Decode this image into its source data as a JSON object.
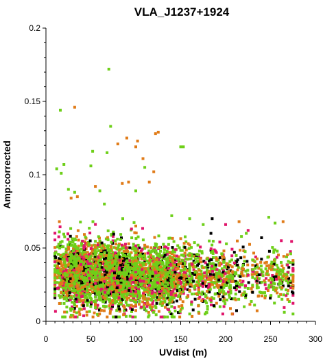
{
  "chart_data": {
    "type": "scatter",
    "title": "VLA_J1237+1924",
    "xlabel": "UVdist (m)",
    "ylabel": "Amp:corrected",
    "xlim": [
      0,
      300
    ],
    "ylim": [
      0,
      0.2
    ],
    "x_ticks": [
      0,
      50,
      100,
      150,
      200,
      250,
      300
    ],
    "x_tick_labels": [
      "0",
      "50",
      "100",
      "150",
      "200",
      "250",
      "300"
    ],
    "y_ticks": [
      0,
      0.05,
      0.1,
      0.15,
      0.2
    ],
    "y_tick_labels": [
      "0",
      "0.05",
      "0.1",
      "0.15",
      "0.2"
    ],
    "grid": false,
    "legend": "none",
    "series_colors": [
      "#000000",
      "#e0156b",
      "#e07b18",
      "#6ecf19"
    ],
    "outliers": [
      {
        "x": 70,
        "y": 0.172,
        "color": "#6ecf19"
      },
      {
        "x": 16,
        "y": 0.144,
        "color": "#6ecf19"
      },
      {
        "x": 32,
        "y": 0.146,
        "color": "#e07b18"
      },
      {
        "x": 72,
        "y": 0.133,
        "color": "#6ecf19"
      },
      {
        "x": 122,
        "y": 0.128,
        "color": "#e07b18"
      },
      {
        "x": 125,
        "y": 0.129,
        "color": "#e07b18"
      },
      {
        "x": 90,
        "y": 0.125,
        "color": "#e07b18"
      },
      {
        "x": 102,
        "y": 0.123,
        "color": "#e07b18"
      },
      {
        "x": 80,
        "y": 0.121,
        "color": "#e07b18"
      },
      {
        "x": 150,
        "y": 0.119,
        "color": "#6ecf19"
      },
      {
        "x": 153,
        "y": 0.119,
        "color": "#6ecf19"
      },
      {
        "x": 52,
        "y": 0.116,
        "color": "#6ecf19"
      },
      {
        "x": 68,
        "y": 0.115,
        "color": "#6ecf19"
      },
      {
        "x": 100,
        "y": 0.119,
        "color": "#e07b18"
      },
      {
        "x": 108,
        "y": 0.111,
        "color": "#e07b18"
      },
      {
        "x": 110,
        "y": 0.105,
        "color": "#6ecf19"
      },
      {
        "x": 12,
        "y": 0.104,
        "color": "#6ecf19"
      },
      {
        "x": 20,
        "y": 0.107,
        "color": "#6ecf19"
      },
      {
        "x": 17,
        "y": 0.101,
        "color": "#6ecf19"
      },
      {
        "x": 50,
        "y": 0.106,
        "color": "#6ecf19"
      },
      {
        "x": 120,
        "y": 0.102,
        "color": "#e07b18"
      },
      {
        "x": 115,
        "y": 0.095,
        "color": "#e07b18"
      },
      {
        "x": 55,
        "y": 0.092,
        "color": "#e07b18"
      },
      {
        "x": 85,
        "y": 0.094,
        "color": "#e07b18"
      },
      {
        "x": 92,
        "y": 0.095,
        "color": "#e07b18"
      },
      {
        "x": 25,
        "y": 0.09,
        "color": "#6ecf19"
      },
      {
        "x": 32,
        "y": 0.088,
        "color": "#6ecf19"
      },
      {
        "x": 60,
        "y": 0.089,
        "color": "#6ecf19"
      },
      {
        "x": 35,
        "y": 0.085,
        "color": "#e07b18"
      },
      {
        "x": 100,
        "y": 0.089,
        "color": "#6ecf19"
      },
      {
        "x": 28,
        "y": 0.084,
        "color": "#e07b18"
      },
      {
        "x": 65,
        "y": 0.08,
        "color": "#6ecf19"
      },
      {
        "x": 140,
        "y": 0.072,
        "color": "#6ecf19"
      },
      {
        "x": 160,
        "y": 0.07,
        "color": "#6ecf19"
      },
      {
        "x": 175,
        "y": 0.066,
        "color": "#6ecf19"
      },
      {
        "x": 215,
        "y": 0.068,
        "color": "#e07b18"
      },
      {
        "x": 200,
        "y": 0.066,
        "color": "#e0156b"
      },
      {
        "x": 248,
        "y": 0.071,
        "color": "#6ecf19"
      },
      {
        "x": 255,
        "y": 0.067,
        "color": "#6ecf19"
      },
      {
        "x": 264,
        "y": 0.068,
        "color": "#e07b18"
      },
      {
        "x": 185,
        "y": 0.07,
        "color": "#000000"
      },
      {
        "x": 225,
        "y": 0.062,
        "color": "#e0156b"
      },
      {
        "x": 240,
        "y": 0.057,
        "color": "#000000"
      },
      {
        "x": 262,
        "y": 0.055,
        "color": "#e0156b"
      }
    ],
    "clusters": [
      {
        "x_range": [
          10,
          60
        ],
        "y_range": [
          0.003,
          0.068
        ],
        "center": [
          35,
          0.033
        ],
        "spread": [
          13,
          0.011
        ],
        "count": 1300
      },
      {
        "x_range": [
          55,
          110
        ],
        "y_range": [
          0.003,
          0.07
        ],
        "center": [
          80,
          0.031
        ],
        "spread": [
          15,
          0.011
        ],
        "count": 1500
      },
      {
        "x_range": [
          100,
          170
        ],
        "y_range": [
          0.003,
          0.065
        ],
        "center": [
          130,
          0.03
        ],
        "spread": [
          18,
          0.011
        ],
        "count": 1100
      },
      {
        "x_range": [
          160,
          235
        ],
        "y_range": [
          0.005,
          0.06
        ],
        "center": [
          195,
          0.03
        ],
        "spread": [
          20,
          0.01
        ],
        "count": 500
      },
      {
        "x_range": [
          230,
          275
        ],
        "y_range": [
          0.005,
          0.055
        ],
        "center": [
          255,
          0.03
        ],
        "spread": [
          14,
          0.009
        ],
        "count": 220
      }
    ],
    "color_weights": [
      0.1,
      0.14,
      0.26,
      0.5
    ]
  }
}
